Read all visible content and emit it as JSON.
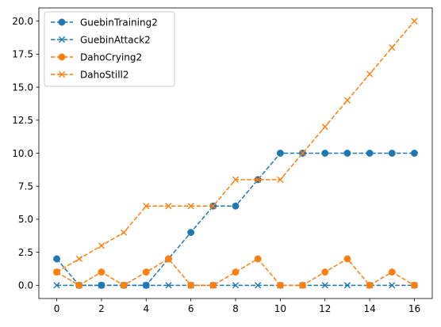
{
  "chart_data": {
    "type": "line",
    "title": "",
    "xlabel": "",
    "ylabel": "",
    "xlim": [
      -0.8,
      16.8
    ],
    "ylim": [
      -1.0,
      21.0
    ],
    "grid": false,
    "legend_position": "top-left",
    "x": [
      0,
      1,
      2,
      3,
      4,
      5,
      6,
      7,
      8,
      9,
      10,
      11,
      12,
      13,
      14,
      15,
      16
    ],
    "x_ticks": [
      0,
      2,
      4,
      6,
      8,
      10,
      12,
      14,
      16
    ],
    "x_tick_labels": [
      "0",
      "2",
      "4",
      "6",
      "8",
      "10",
      "12",
      "14",
      "16"
    ],
    "y_ticks": [
      0,
      2.5,
      5,
      7.5,
      10,
      12.5,
      15,
      17.5,
      20
    ],
    "y_tick_labels": [
      "0.0",
      "2.5",
      "5.0",
      "7.5",
      "10.0",
      "12.5",
      "15.0",
      "17.5",
      "20.0"
    ],
    "series": [
      {
        "name": "GuebinTraining2",
        "color": "#1f77b4",
        "marker": "circle",
        "line_style": "dashed",
        "values": [
          2,
          0,
          0,
          0,
          0,
          2,
          4,
          6,
          6,
          8,
          10,
          10,
          10,
          10,
          10,
          10,
          10
        ]
      },
      {
        "name": "GuebinAttack2",
        "color": "#1f77b4",
        "marker": "x",
        "line_style": "dashed",
        "values": [
          0,
          0,
          0,
          0,
          0,
          0,
          0,
          0,
          0,
          0,
          0,
          0,
          0,
          0,
          0,
          0,
          0
        ]
      },
      {
        "name": "DahoCrying2",
        "color": "#ff7f0e",
        "marker": "circle",
        "line_style": "dashed",
        "values": [
          1,
          0,
          1,
          0,
          1,
          2,
          0,
          0,
          1,
          2,
          0,
          0,
          1,
          2,
          0,
          1,
          0
        ]
      },
      {
        "name": "DahoStill2",
        "color": "#ff7f0e",
        "marker": "x",
        "line_style": "dashed",
        "values": [
          1,
          2,
          3,
          4,
          6,
          6,
          6,
          6,
          8,
          8,
          8,
          10,
          12,
          14,
          16,
          18,
          20
        ]
      }
    ]
  }
}
